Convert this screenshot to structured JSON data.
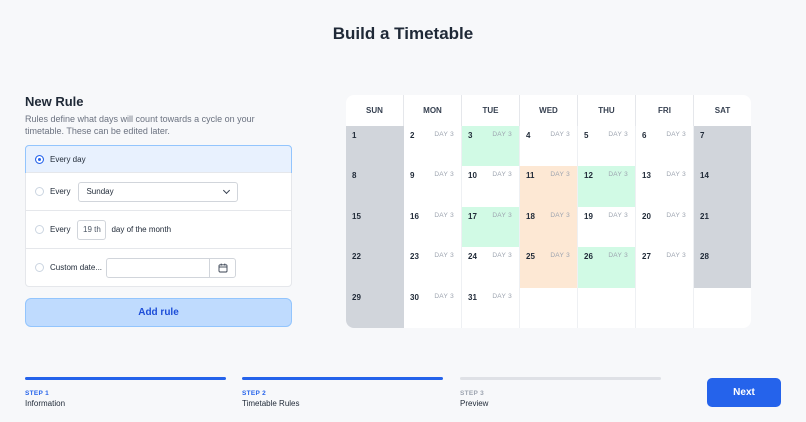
{
  "title": "Build a Timetable",
  "rule": {
    "heading": "New Rule",
    "description": "Rules define what days will count towards a cycle on your timetable. These can be edited later.",
    "option_every_day": "Every day",
    "option_every": "Every",
    "weekday_value": "Sunday",
    "option_every_2": "Every",
    "day_of_month_value": "19 th",
    "day_of_month_suffix": "day of the month",
    "option_custom": "Custom date...",
    "add_label": "Add rule"
  },
  "calendar": {
    "weekdays": [
      "SUN",
      "MON",
      "TUE",
      "WED",
      "THU",
      "FRI",
      "SAT"
    ],
    "weeks": [
      [
        {
          "d": "1",
          "t": "weekend"
        },
        {
          "d": "2",
          "l": "DAY 3"
        },
        {
          "d": "3",
          "l": "DAY 3",
          "t": "green"
        },
        {
          "d": "4",
          "l": "DAY 3"
        },
        {
          "d": "5",
          "l": "DAY 3"
        },
        {
          "d": "6",
          "l": "DAY 3"
        },
        {
          "d": "7",
          "t": "weekend"
        }
      ],
      [
        {
          "d": "8",
          "t": "weekend"
        },
        {
          "d": "9",
          "l": "DAY 3"
        },
        {
          "d": "10",
          "l": "DAY 3"
        },
        {
          "d": "11",
          "l": "DAY 3",
          "t": "orange"
        },
        {
          "d": "12",
          "l": "DAY 3",
          "t": "green"
        },
        {
          "d": "13",
          "l": "DAY 3"
        },
        {
          "d": "14",
          "t": "weekend"
        }
      ],
      [
        {
          "d": "15",
          "t": "weekend"
        },
        {
          "d": "16",
          "l": "DAY 3"
        },
        {
          "d": "17",
          "l": "DAY 3",
          "t": "green"
        },
        {
          "d": "18",
          "l": "DAY 3",
          "t": "orange"
        },
        {
          "d": "19",
          "l": "DAY 3"
        },
        {
          "d": "20",
          "l": "DAY 3"
        },
        {
          "d": "21",
          "t": "weekend"
        }
      ],
      [
        {
          "d": "22",
          "t": "weekend"
        },
        {
          "d": "23",
          "l": "DAY 3"
        },
        {
          "d": "24",
          "l": "DAY 3"
        },
        {
          "d": "25",
          "l": "DAY 3",
          "t": "orange"
        },
        {
          "d": "26",
          "l": "DAY 3",
          "t": "green"
        },
        {
          "d": "27",
          "l": "DAY 3"
        },
        {
          "d": "28",
          "t": "weekend"
        }
      ],
      [
        {
          "d": "29",
          "t": "weekend"
        },
        {
          "d": "30",
          "l": "DAY 3"
        },
        {
          "d": "31",
          "l": "DAY 3"
        },
        {
          "d": ""
        },
        {
          "d": ""
        },
        {
          "d": ""
        },
        {
          "d": ""
        }
      ]
    ],
    "colors": {
      "weekend": "#d1d5db",
      "green": "#d1fae5",
      "orange": "#fde8d4"
    }
  },
  "steps": [
    {
      "label": "STEP 1",
      "name": "Information",
      "active": true
    },
    {
      "label": "STEP 2",
      "name": "Timetable Rules",
      "active": true
    },
    {
      "label": "STEP 3",
      "name": "Preview",
      "active": false
    }
  ],
  "next_label": "Next",
  "accent": "#2563eb",
  "icons": {
    "calendar": "calendar-icon",
    "chevron": "chevron-down-icon"
  }
}
